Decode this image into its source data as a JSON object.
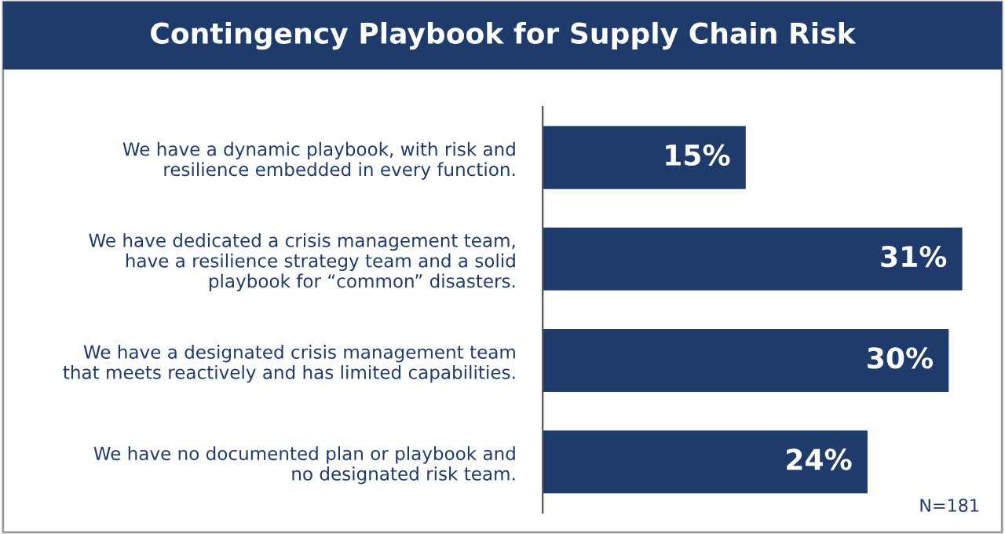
{
  "chart_data": {
    "type": "bar",
    "orientation": "horizontal",
    "title": "Contingency Playbook for Supply Chain Risk",
    "categories": [
      "We have a dynamic playbook, with risk and\nresilience embedded in every function.",
      "We have dedicated a crisis management team,\nhave a resilience strategy team and a solid\nplaybook for “common” disasters.",
      "We have a designated crisis management team\nthat meets reactively and has limited capabilities.",
      "We have no documented plan or playbook and\nno designated risk team."
    ],
    "values": [
      15,
      31,
      30,
      24
    ],
    "value_labels": [
      "15%",
      "31%",
      "30%",
      "24%"
    ],
    "color": "#1f3b6b",
    "annotations": [
      "N=181"
    ],
    "grid": false,
    "legend": false
  }
}
